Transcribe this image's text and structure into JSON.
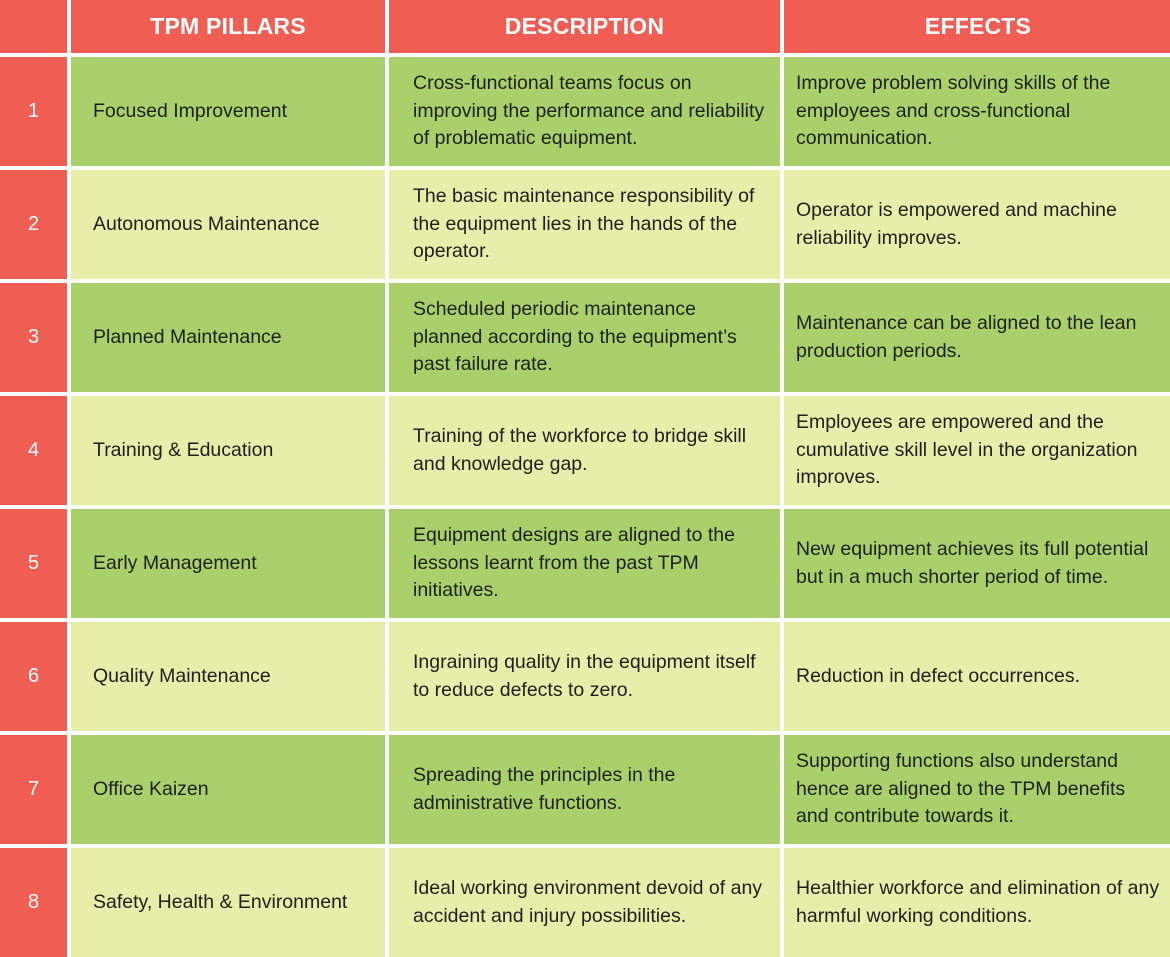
{
  "headers": {
    "number": "",
    "pillar": "TPM PILLARS",
    "description": "DESCRIPTION",
    "effects": "EFFECTS"
  },
  "colors": {
    "header": "#f05d52",
    "row_dark": "#a9d06a",
    "row_light": "#e7eeaa",
    "text": "#1f1f1f"
  },
  "rows": [
    {
      "number": "1",
      "pillar": "Focused Improvement",
      "description": "Cross-functional teams focus on improving the performance and reliability of problematic equipment.",
      "effects": "Improve problem solving skills of the employees and cross-functional communication."
    },
    {
      "number": "2",
      "pillar": "Autonomous Maintenance",
      "description": "The basic maintenance responsibility of the equipment lies in the hands of the operator.",
      "effects": "Operator is empowered and machine reliability improves."
    },
    {
      "number": "3",
      "pillar": "Planned Maintenance",
      "description": "Scheduled periodic maintenance planned according to the equipment’s past failure rate.",
      "effects": "Maintenance can be aligned to the lean production periods."
    },
    {
      "number": "4",
      "pillar": "Training & Education",
      "description": "Training of the workforce to bridge skill and knowledge gap.",
      "effects": "Employees are empowered and the cumulative skill level in the organization improves."
    },
    {
      "number": "5",
      "pillar": "Early Management",
      "description": "Equipment designs are aligned to the lessons learnt from the past TPM initiatives.",
      "effects": "New equipment achieves its full potential but in a much shorter period of time."
    },
    {
      "number": "6",
      "pillar": "Quality Maintenance",
      "description": "Ingraining quality in the equipment itself to reduce defects to zero.",
      "effects": "Reduction in defect occurrences."
    },
    {
      "number": "7",
      "pillar": "Office Kaizen",
      "description": "Spreading the principles in the administrative functions.",
      "effects": "Supporting functions also understand hence are aligned to the TPM benefits and contribute towards it."
    },
    {
      "number": "8",
      "pillar": "Safety, Health & Environment",
      "description": "Ideal working environment devoid of any accident and injury possibilities.",
      "effects": "Healthier workforce and elimination of any harmful working conditions."
    }
  ]
}
